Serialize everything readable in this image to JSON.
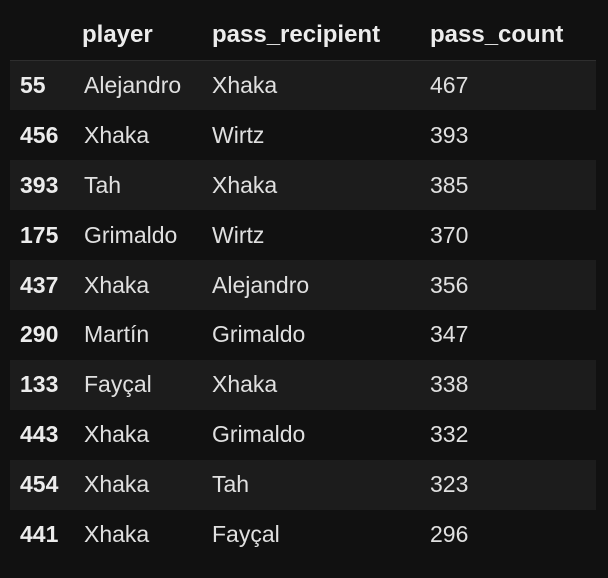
{
  "table": {
    "columns": [
      "",
      "player",
      "pass_recipient",
      "pass_count"
    ],
    "rows": [
      {
        "index": "55",
        "player": "Alejandro",
        "pass_recipient": "Xhaka",
        "pass_count": "467"
      },
      {
        "index": "456",
        "player": "Xhaka",
        "pass_recipient": "Wirtz",
        "pass_count": "393"
      },
      {
        "index": "393",
        "player": "Tah",
        "pass_recipient": "Xhaka",
        "pass_count": "385"
      },
      {
        "index": "175",
        "player": "Grimaldo",
        "pass_recipient": "Wirtz",
        "pass_count": "370"
      },
      {
        "index": "437",
        "player": "Xhaka",
        "pass_recipient": "Alejandro",
        "pass_count": "356"
      },
      {
        "index": "290",
        "player": "Martín",
        "pass_recipient": "Grimaldo",
        "pass_count": "347"
      },
      {
        "index": "133",
        "player": "Fayçal",
        "pass_recipient": "Xhaka",
        "pass_count": "338"
      },
      {
        "index": "443",
        "player": "Xhaka",
        "pass_recipient": "Grimaldo",
        "pass_count": "332"
      },
      {
        "index": "454",
        "player": "Xhaka",
        "pass_recipient": "Tah",
        "pass_count": "323"
      },
      {
        "index": "441",
        "player": "Xhaka",
        "pass_recipient": "Fayçal",
        "pass_count": "296"
      }
    ]
  },
  "colors": {
    "background": "#111111",
    "row_stripe": "#1c1c1c",
    "text": "#e0e0e0"
  }
}
